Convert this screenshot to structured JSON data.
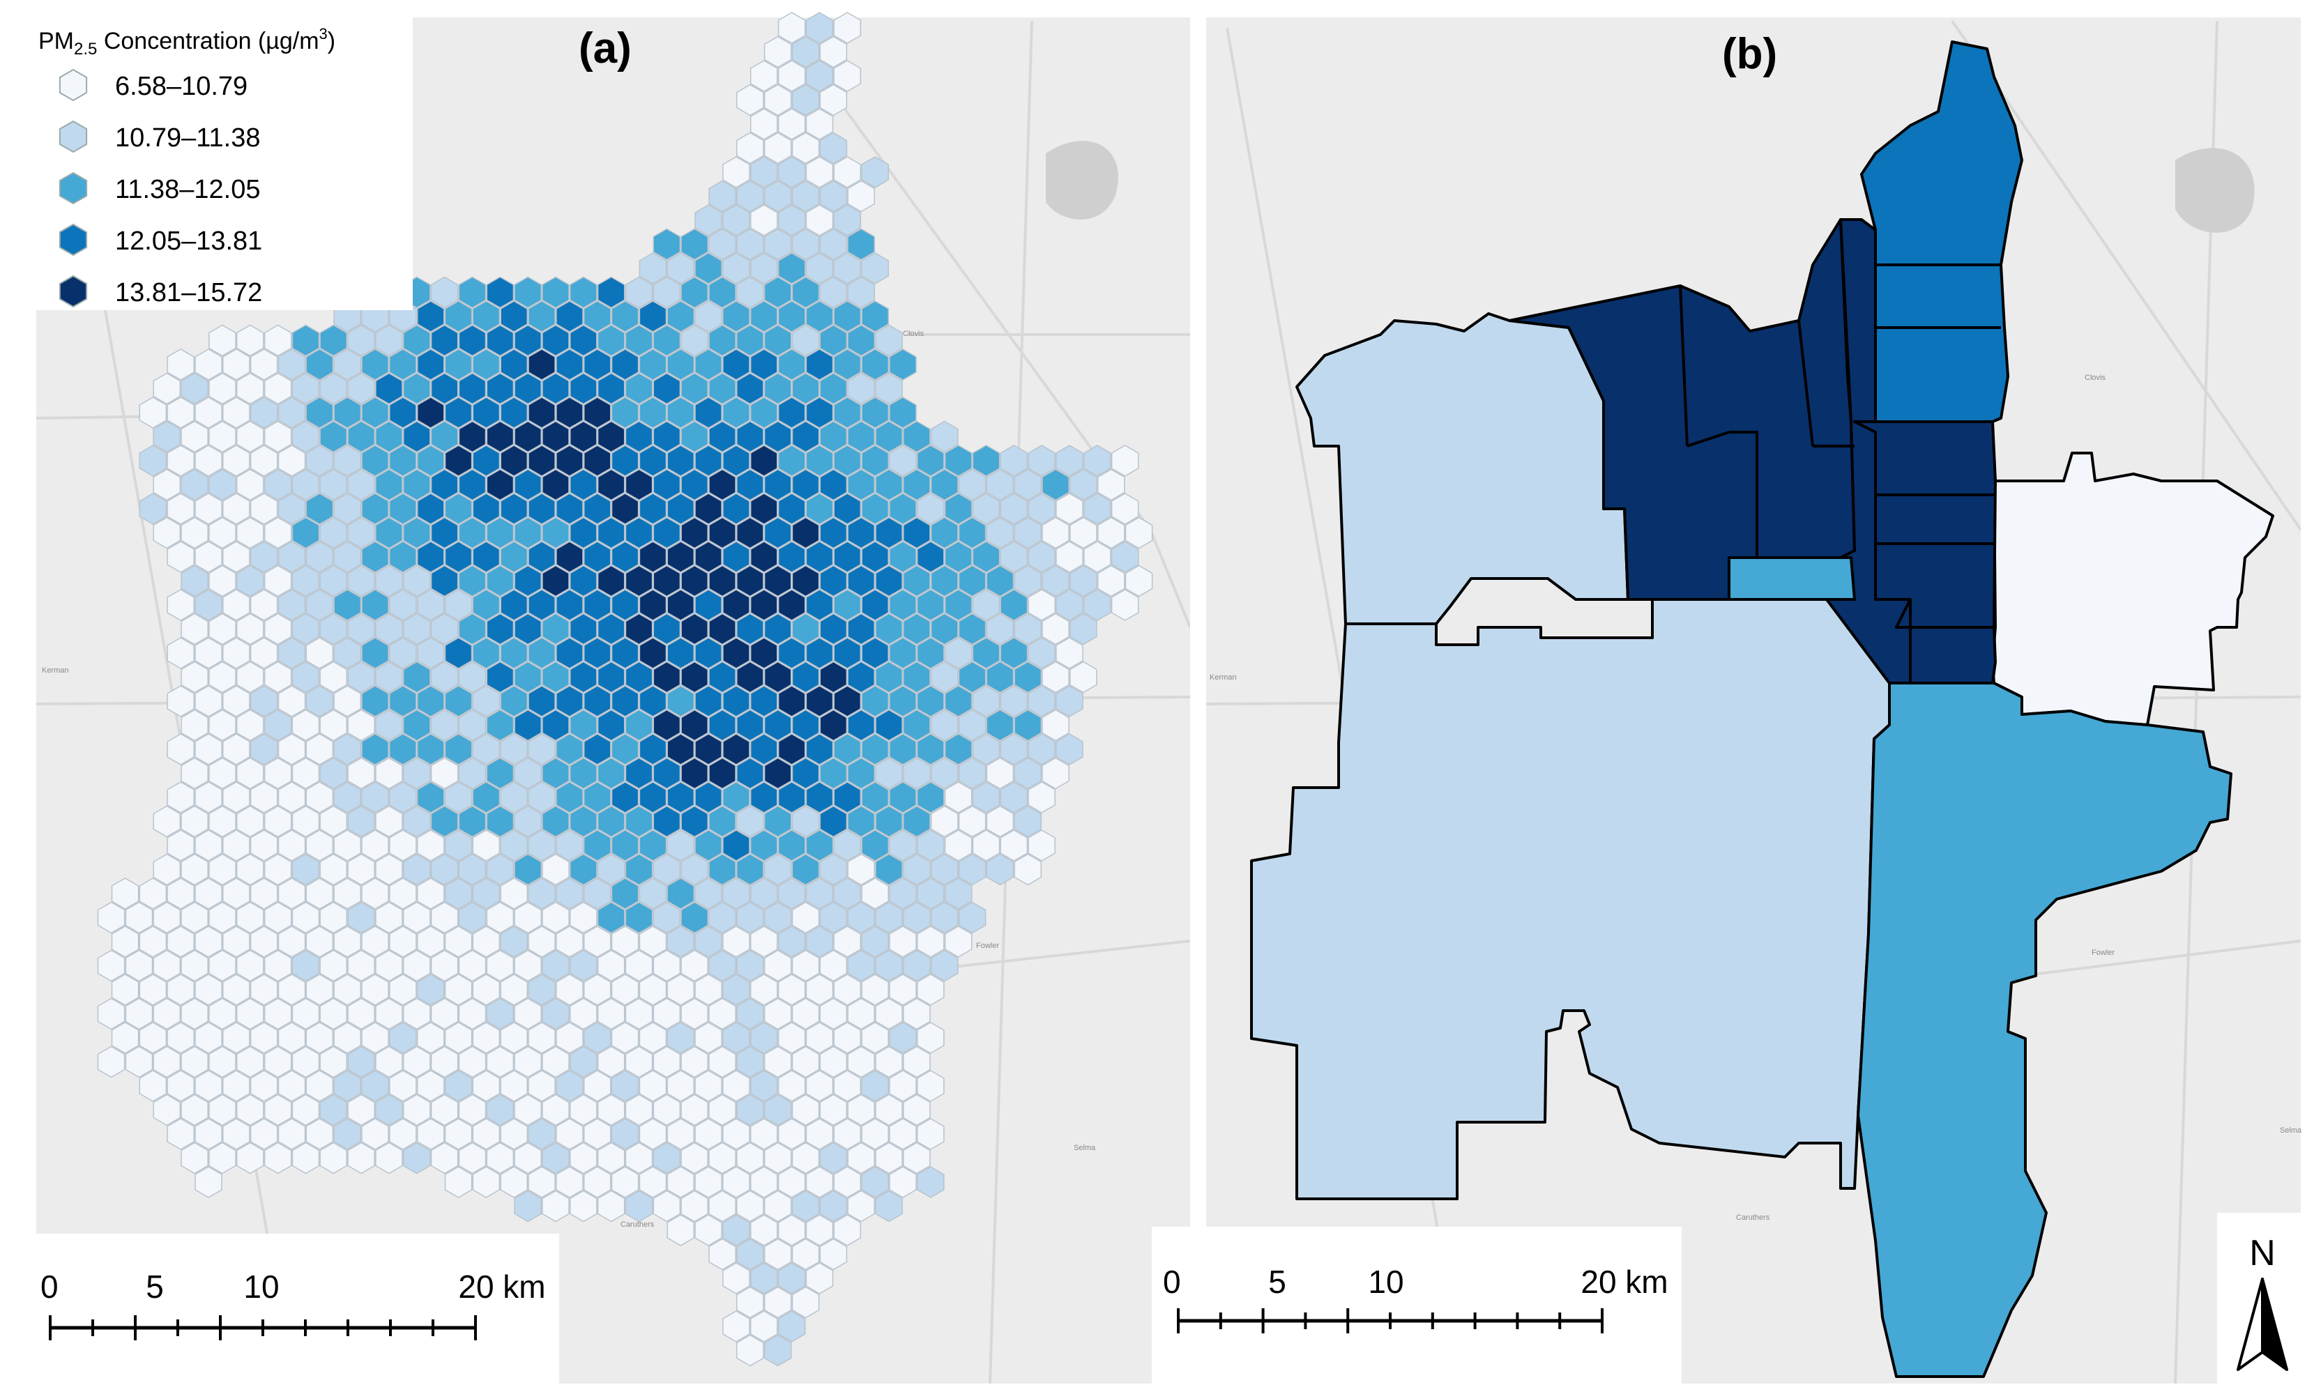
{
  "panel_a": {
    "label": "(a)",
    "legend": {
      "title_prefix": "PM",
      "title_subscript": "2.5",
      "title_suffix": " Concentration (µg/m",
      "title_superscript": "3",
      "title_close": ")",
      "classes": [
        {
          "range": "6.58–10.79",
          "color": "#f3f7fc"
        },
        {
          "range": "10.79–11.38",
          "color": "#c0d9ee"
        },
        {
          "range": "11.38–12.05",
          "color": "#45a8d5"
        },
        {
          "range": "12.05–13.81",
          "color": "#0c74ba"
        },
        {
          "range": "13.81–15.72",
          "color": "#08306b"
        }
      ]
    },
    "scale_bar": {
      "labels": [
        "0",
        "5",
        "10",
        "20 km"
      ]
    }
  },
  "panel_b": {
    "label": "(b)",
    "scale_bar": {
      "labels": [
        "0",
        "5",
        "10",
        "20 km"
      ]
    },
    "north_arrow_label": "N"
  },
  "basemap_places": [
    "Clovis",
    "Kerman",
    "Fowler",
    "Selma",
    "Caruthers"
  ],
  "colors": {
    "basemap": "#ececec",
    "road": "#d6d6d6",
    "lake": "#cfcfcf",
    "outline": "#000000"
  }
}
